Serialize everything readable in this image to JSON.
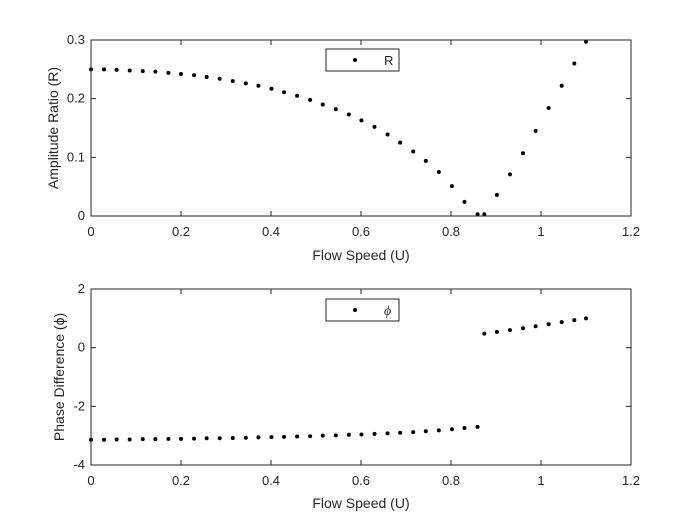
{
  "chart_data": [
    {
      "type": "scatter",
      "xlabel": "Flow Speed (U)",
      "ylabel": "Amplitude Ratio (R)",
      "xlim": [
        0,
        1.2
      ],
      "ylim": [
        0,
        0.3
      ],
      "xticks": [
        "0",
        "0.2",
        "0.4",
        "0.6",
        "0.8",
        "1",
        "1.2"
      ],
      "yticks": [
        "0",
        "0.1",
        "0.2",
        "0.3"
      ],
      "legend_position": "top-center",
      "marker_color": "#000000",
      "grid": false,
      "series": [
        {
          "name": "R",
          "x": [
            0,
            0.029,
            0.057,
            0.086,
            0.115,
            0.143,
            0.172,
            0.2,
            0.229,
            0.257,
            0.286,
            0.315,
            0.344,
            0.372,
            0.401,
            0.429,
            0.458,
            0.487,
            0.515,
            0.544,
            0.573,
            0.601,
            0.63,
            0.659,
            0.687,
            0.716,
            0.744,
            0.773,
            0.802,
            0.83,
            0.859,
            0.874,
            0.902,
            0.931,
            0.96,
            0.988,
            1.017,
            1.046,
            1.074,
            1.1
          ],
          "y": [
            0.25,
            0.25,
            0.249,
            0.248,
            0.247,
            0.246,
            0.244,
            0.242,
            0.24,
            0.237,
            0.234,
            0.23,
            0.226,
            0.222,
            0.217,
            0.211,
            0.205,
            0.198,
            0.19,
            0.182,
            0.173,
            0.163,
            0.152,
            0.139,
            0.125,
            0.11,
            0.094,
            0.075,
            0.051,
            0.024,
            0.003,
            0.003,
            0.036,
            0.071,
            0.107,
            0.145,
            0.184,
            0.222,
            0.26,
            0.297
          ]
        }
      ]
    },
    {
      "type": "scatter",
      "xlabel": "Flow Speed (U)",
      "ylabel": "Phase Difference (ϕ)",
      "xlim": [
        0,
        1.2
      ],
      "ylim": [
        -4,
        2
      ],
      "xticks": [
        "0",
        "0.2",
        "0.4",
        "0.6",
        "0.8",
        "1",
        "1.2"
      ],
      "yticks": [
        "-4",
        "-2",
        "0",
        "2"
      ],
      "legend_position": "top-center",
      "marker_color": "#000000",
      "grid": false,
      "series": [
        {
          "name": "ϕ",
          "x": [
            0,
            0.029,
            0.057,
            0.086,
            0.115,
            0.143,
            0.172,
            0.2,
            0.229,
            0.257,
            0.286,
            0.315,
            0.344,
            0.372,
            0.401,
            0.429,
            0.458,
            0.487,
            0.515,
            0.544,
            0.573,
            0.601,
            0.63,
            0.659,
            0.687,
            0.716,
            0.744,
            0.773,
            0.802,
            0.83,
            0.859,
            0.874,
            0.902,
            0.931,
            0.96,
            0.988,
            1.017,
            1.046,
            1.074,
            1.1
          ],
          "y": [
            -3.14,
            -3.14,
            -3.13,
            -3.13,
            -3.12,
            -3.12,
            -3.11,
            -3.11,
            -3.1,
            -3.09,
            -3.09,
            -3.08,
            -3.07,
            -3.06,
            -3.05,
            -3.04,
            -3.03,
            -3.02,
            -3.0,
            -2.99,
            -2.97,
            -2.96,
            -2.94,
            -2.92,
            -2.9,
            -2.88,
            -2.85,
            -2.82,
            -2.78,
            -2.74,
            -2.7,
            0.48,
            0.54,
            0.6,
            0.66,
            0.73,
            0.8,
            0.87,
            0.94,
            1.0
          ]
        }
      ]
    }
  ]
}
